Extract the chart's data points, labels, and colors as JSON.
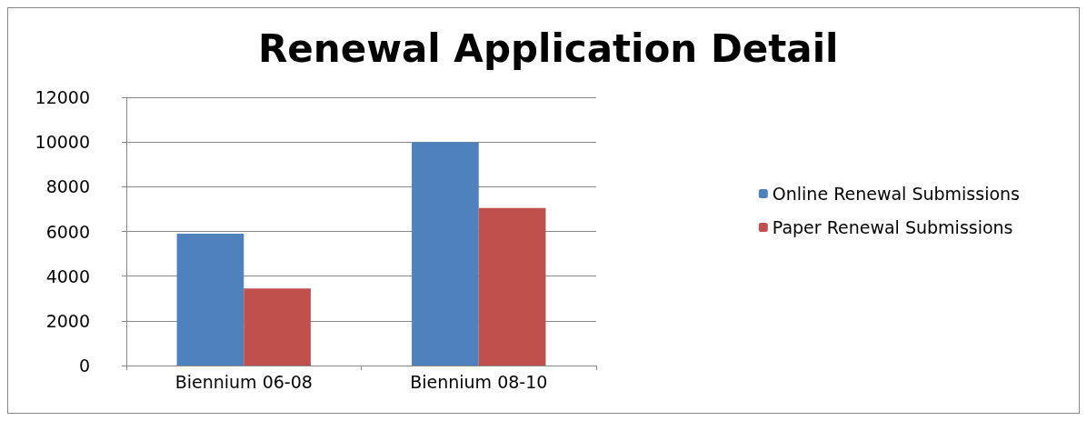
{
  "chart_data": {
    "type": "bar",
    "title": "Renewal Application Detail",
    "categories": [
      "Biennium 06-08",
      "Biennium 08-10"
    ],
    "series": [
      {
        "name": "Online Renewal Submissions",
        "color": "#4f81bd",
        "values": [
          5900,
          10000
        ]
      },
      {
        "name": "Paper Renewal Submissions",
        "color": "#c0504d",
        "values": [
          3450,
          7050
        ]
      }
    ],
    "ylim": [
      0,
      12000
    ],
    "yticks": [
      0,
      2000,
      4000,
      6000,
      8000,
      10000,
      12000
    ],
    "grid": "y",
    "legend": "right"
  }
}
